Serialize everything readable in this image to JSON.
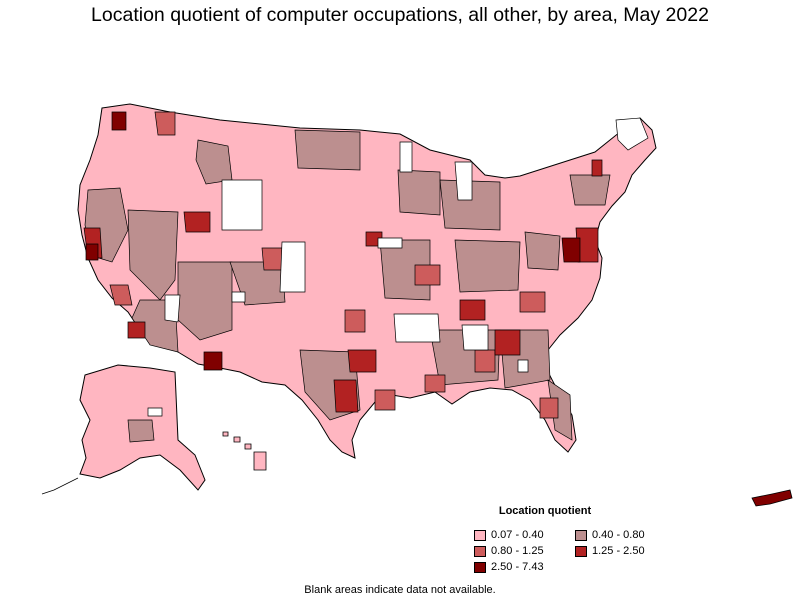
{
  "title": "Location quotient of computer occupations, all other, by area, May 2022",
  "legend": {
    "title": "Location quotient",
    "items": [
      {
        "label": "0.07 - 0.40",
        "color": "#ffb6c1"
      },
      {
        "label": "0.40 - 0.80",
        "color": "#bc8f8f"
      },
      {
        "label": "0.80 - 1.25",
        "color": "#cd5c5c"
      },
      {
        "label": "1.25 - 2.50",
        "color": "#b22222"
      },
      {
        "label": "2.50 - 7.43",
        "color": "#800000"
      }
    ]
  },
  "note": "Blank areas indicate data not available."
}
